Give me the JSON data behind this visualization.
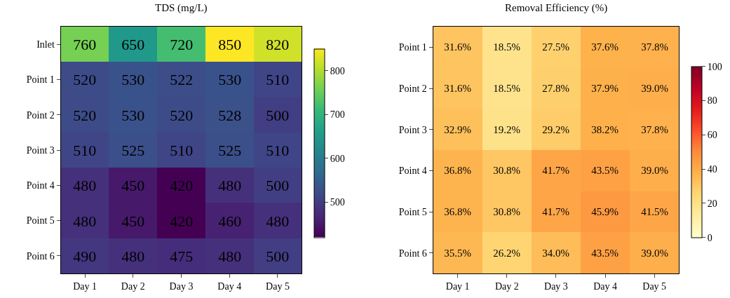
{
  "chart_data": [
    {
      "type": "heatmap",
      "title": "TDS (mg/L)",
      "categories": [
        "Day 1",
        "Day 2",
        "Day 3",
        "Day 4",
        "Day 5"
      ],
      "y_categories": [
        "Inlet",
        "Point 1",
        "Point 2",
        "Point 3",
        "Point 4",
        "Point 5",
        "Point 6"
      ],
      "cells": [
        [
          760,
          650,
          720,
          850,
          820
        ],
        [
          520,
          530,
          522,
          530,
          510
        ],
        [
          520,
          530,
          520,
          528,
          500
        ],
        [
          510,
          525,
          510,
          525,
          510
        ],
        [
          480,
          450,
          420,
          480,
          500
        ],
        [
          480,
          450,
          420,
          460,
          480
        ],
        [
          490,
          480,
          475,
          480,
          500
        ]
      ],
      "data_labels": true,
      "clim": [
        420,
        850
      ],
      "cticks": [
        500,
        600,
        700,
        800
      ]
    },
    {
      "type": "heatmap",
      "title": "Removal Efficiency (%)",
      "categories": [
        "Day 1",
        "Day 2",
        "Day 3",
        "Day 4",
        "Day 5"
      ],
      "y_categories": [
        "Point 1",
        "Point 2",
        "Point 3",
        "Point 4",
        "Point 5",
        "Point 6"
      ],
      "cells": [
        [
          31.6,
          18.5,
          27.5,
          37.6,
          37.8
        ],
        [
          31.6,
          18.5,
          27.8,
          37.9,
          39.0
        ],
        [
          32.9,
          19.2,
          29.2,
          38.2,
          37.8
        ],
        [
          36.8,
          30.8,
          41.7,
          43.5,
          39.0
        ],
        [
          36.8,
          30.8,
          41.7,
          45.9,
          41.5
        ],
        [
          35.5,
          26.2,
          34.0,
          43.5,
          39.0
        ]
      ],
      "cell_labels": [
        [
          "31.6%",
          "18.5%",
          "27.5%",
          "37.6%",
          "37.8%"
        ],
        [
          "31.6%",
          "18.5%",
          "27.8%",
          "37.9%",
          "39.0%"
        ],
        [
          "32.9%",
          "19.2%",
          "29.2%",
          "38.2%",
          "37.8%"
        ],
        [
          "36.8%",
          "30.8%",
          "41.7%",
          "43.5%",
          "39.0%"
        ],
        [
          "36.8%",
          "30.8%",
          "41.7%",
          "45.9%",
          "41.5%"
        ],
        [
          "35.5%",
          "26.2%",
          "34.0%",
          "43.5%",
          "39.0%"
        ]
      ],
      "clim": [
        0,
        100
      ],
      "cticks": [
        0,
        20,
        40,
        60,
        80,
        100
      ]
    }
  ]
}
